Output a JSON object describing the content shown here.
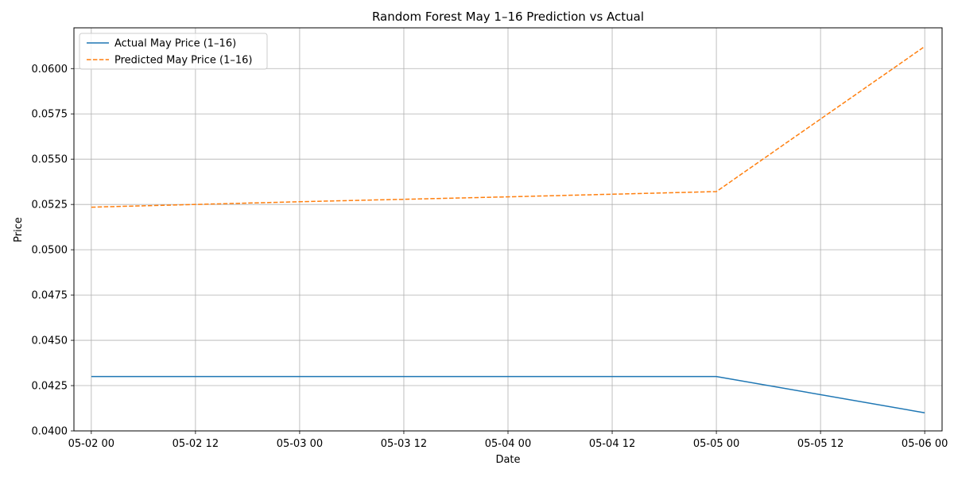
{
  "chart_data": {
    "type": "line",
    "title": "Random Forest May 1–16 Prediction vs Actual",
    "xlabel": "Date",
    "ylabel": "Price",
    "x": [
      "2025-05-02T00:00",
      "2025-05-03T00:00",
      "2025-05-04T00:00",
      "2025-05-05T00:00",
      "2025-05-06T00:00"
    ],
    "xlim": [
      "2025-05-01T22:00",
      "2025-05-06T02:00"
    ],
    "ylim": [
      0.04,
      0.06225
    ],
    "x_tick_values": [
      "2025-05-02T00:00",
      "2025-05-02T12:00",
      "2025-05-03T00:00",
      "2025-05-03T12:00",
      "2025-05-04T00:00",
      "2025-05-04T12:00",
      "2025-05-05T00:00",
      "2025-05-05T12:00",
      "2025-05-06T00:00"
    ],
    "x_ticks": [
      "05-02 00",
      "05-02 12",
      "05-03 00",
      "05-03 12",
      "05-04 00",
      "05-04 12",
      "05-05 00",
      "05-05 12",
      "05-06 00"
    ],
    "y_ticks": [
      0.04,
      0.0425,
      0.045,
      0.0475,
      0.05,
      0.0525,
      0.055,
      0.0575,
      0.06
    ],
    "y_tick_labels": [
      "0.0400",
      "0.0425",
      "0.0450",
      "0.0475",
      "0.0500",
      "0.0525",
      "0.0550",
      "0.0575",
      "0.0600"
    ],
    "grid": true,
    "legend_position": "top-left",
    "series": [
      {
        "name": "Actual May Price (1–16)",
        "values": [
          0.043,
          0.043,
          0.043,
          0.043,
          0.041
        ],
        "color": "#1f77b4",
        "style": "solid"
      },
      {
        "name": "Predicted May Price (1–16)",
        "values": [
          0.05235,
          0.05265,
          0.05292,
          0.05321,
          0.06122
        ],
        "color": "#ff7f0e",
        "style": "dashed"
      }
    ]
  }
}
